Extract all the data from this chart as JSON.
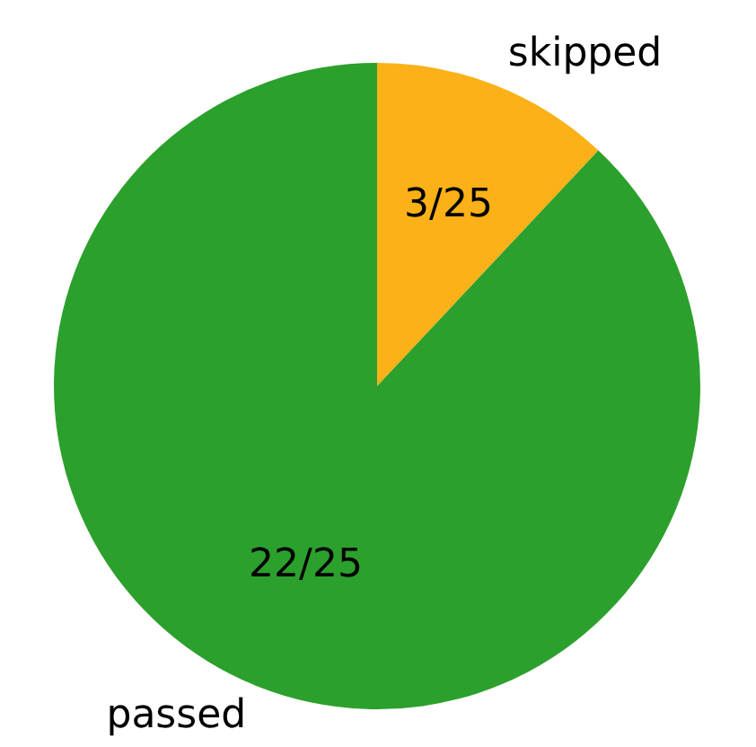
{
  "chart_data": {
    "type": "pie",
    "categories": [
      "skipped",
      "passed"
    ],
    "values": [
      3,
      22
    ],
    "colors": [
      "#fbb117",
      "#2ca02c"
    ],
    "value_labels": [
      "3/25",
      "22/25"
    ],
    "legend": false
  }
}
